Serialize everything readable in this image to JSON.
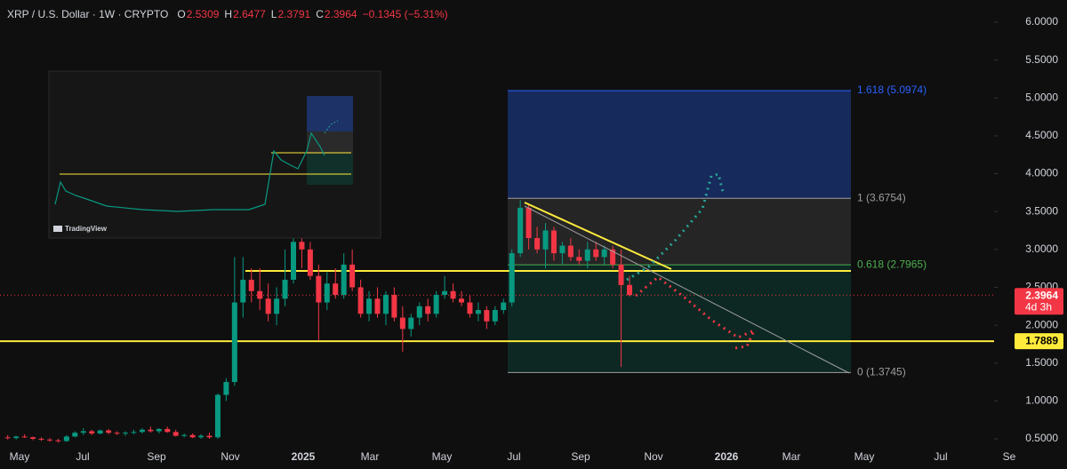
{
  "chart_data": {
    "type": "candlestick",
    "title": "XRP / U.S. Dollar · 1W · CRYPTO",
    "ohlc": [
      {
        "label": "O",
        "value": "2.5309"
      },
      {
        "label": "H",
        "value": "2.6477"
      },
      {
        "label": "L",
        "value": "2.3791"
      },
      {
        "label": "C",
        "value": "2.3964"
      }
    ],
    "change": "−0.1345 (−5.31%)",
    "up_color": "#089981",
    "down_color": "#f23645",
    "ylim": [
      0.47,
      6.15
    ],
    "yticks": [
      {
        "value": 6,
        "label": "6.0000"
      },
      {
        "value": 5.5,
        "label": "5.5000"
      },
      {
        "value": 5,
        "label": "5.0000"
      },
      {
        "value": 4.5,
        "label": "4.5000"
      },
      {
        "value": 4,
        "label": "4.0000"
      },
      {
        "value": 3.5,
        "label": "3.5000"
      },
      {
        "value": 3,
        "label": "3.0000"
      },
      {
        "value": 2.5,
        "label": "2.5000"
      },
      {
        "value": 2,
        "label": "2.0000"
      },
      {
        "value": 1.5,
        "label": "1.5000"
      },
      {
        "value": 1,
        "label": "1.0000"
      },
      {
        "value": 0.5,
        "label": "0.5000"
      }
    ],
    "categories": [
      "May",
      "Jul",
      "Sep",
      "Nov",
      "2025",
      "Mar",
      "May",
      "Jul",
      "Sep",
      "Nov",
      "2026",
      "Mar",
      "May",
      "Jul",
      "Se"
    ],
    "candles": [
      [
        0.52,
        0.55,
        0.49,
        0.51
      ],
      [
        0.51,
        0.54,
        0.49,
        0.53
      ],
      [
        0.53,
        0.56,
        0.51,
        0.52
      ],
      [
        0.52,
        0.53,
        0.48,
        0.5
      ],
      [
        0.5,
        0.52,
        0.47,
        0.49
      ],
      [
        0.49,
        0.51,
        0.46,
        0.48
      ],
      [
        0.48,
        0.5,
        0.45,
        0.47
      ],
      [
        0.47,
        0.55,
        0.46,
        0.53
      ],
      [
        0.53,
        0.6,
        0.52,
        0.58
      ],
      [
        0.58,
        0.64,
        0.55,
        0.6
      ],
      [
        0.6,
        0.62,
        0.55,
        0.57
      ],
      [
        0.57,
        0.62,
        0.56,
        0.61
      ],
      [
        0.61,
        0.63,
        0.56,
        0.58
      ],
      [
        0.58,
        0.6,
        0.55,
        0.57
      ],
      [
        0.57,
        0.6,
        0.54,
        0.58
      ],
      [
        0.58,
        0.62,
        0.56,
        0.59
      ],
      [
        0.59,
        0.64,
        0.57,
        0.62
      ],
      [
        0.62,
        0.66,
        0.58,
        0.6
      ],
      [
        0.6,
        0.64,
        0.57,
        0.63
      ],
      [
        0.63,
        0.66,
        0.58,
        0.59
      ],
      [
        0.59,
        0.62,
        0.53,
        0.54
      ],
      [
        0.54,
        0.57,
        0.52,
        0.55
      ],
      [
        0.55,
        0.57,
        0.51,
        0.52
      ],
      [
        0.52,
        0.56,
        0.5,
        0.54
      ],
      [
        0.54,
        0.58,
        0.5,
        0.52
      ],
      [
        0.52,
        1.1,
        0.5,
        1.08
      ],
      [
        1.08,
        1.3,
        1.0,
        1.25
      ],
      [
        1.25,
        2.9,
        1.2,
        2.3
      ],
      [
        2.3,
        2.9,
        2.1,
        2.6
      ],
      [
        2.6,
        2.75,
        2.3,
        2.45
      ],
      [
        2.45,
        2.75,
        2.2,
        2.35
      ],
      [
        2.35,
        2.55,
        2.05,
        2.15
      ],
      [
        2.15,
        2.5,
        2.0,
        2.35
      ],
      [
        2.35,
        3.0,
        2.25,
        2.6
      ],
      [
        2.6,
        3.4,
        2.55,
        3.1
      ],
      [
        3.1,
        3.35,
        2.75,
        3.0
      ],
      [
        3.0,
        3.1,
        2.6,
        2.65
      ],
      [
        2.65,
        2.8,
        1.8,
        2.3
      ],
      [
        2.3,
        2.7,
        2.2,
        2.55
      ],
      [
        2.55,
        2.75,
        2.35,
        2.4
      ],
      [
        2.4,
        2.95,
        2.35,
        2.8
      ],
      [
        2.8,
        3.0,
        2.45,
        2.5
      ],
      [
        2.5,
        2.6,
        2.1,
        2.15
      ],
      [
        2.15,
        2.45,
        2.05,
        2.35
      ],
      [
        2.35,
        2.5,
        2.1,
        2.15
      ],
      [
        2.15,
        2.45,
        2.0,
        2.4
      ],
      [
        2.4,
        2.5,
        2.05,
        2.1
      ],
      [
        2.1,
        2.25,
        1.65,
        1.95
      ],
      [
        1.95,
        2.15,
        1.85,
        2.1
      ],
      [
        2.1,
        2.3,
        2.0,
        2.25
      ],
      [
        2.25,
        2.35,
        2.05,
        2.15
      ],
      [
        2.15,
        2.45,
        2.1,
        2.4
      ],
      [
        2.4,
        2.65,
        2.35,
        2.45
      ],
      [
        2.45,
        2.55,
        2.3,
        2.35
      ],
      [
        2.35,
        2.45,
        2.25,
        2.3
      ],
      [
        2.3,
        2.4,
        2.1,
        2.15
      ],
      [
        2.15,
        2.3,
        2.05,
        2.2
      ],
      [
        2.2,
        2.25,
        1.95,
        2.05
      ],
      [
        2.05,
        2.25,
        2.0,
        2.2
      ],
      [
        2.2,
        2.35,
        2.15,
        2.3
      ],
      [
        2.3,
        3.0,
        2.25,
        2.95
      ],
      [
        2.95,
        3.65,
        2.9,
        3.55
      ],
      [
        3.55,
        3.6,
        3.0,
        3.15
      ],
      [
        3.15,
        3.3,
        2.95,
        3.0
      ],
      [
        3.0,
        3.35,
        2.75,
        3.25
      ],
      [
        3.25,
        3.3,
        2.85,
        2.95
      ],
      [
        2.95,
        3.1,
        2.8,
        3.05
      ],
      [
        3.05,
        3.15,
        2.85,
        2.9
      ],
      [
        2.9,
        3.0,
        2.8,
        2.85
      ],
      [
        2.85,
        3.1,
        2.75,
        3.0
      ],
      [
        3.0,
        3.1,
        2.85,
        2.9
      ],
      [
        2.9,
        3.05,
        2.8,
        3.0
      ],
      [
        3.0,
        3.05,
        2.75,
        2.8
      ],
      [
        2.8,
        3.0,
        1.45,
        2.53
      ],
      [
        2.5309,
        2.6477,
        2.3791,
        2.3964
      ]
    ],
    "fib": [
      {
        "value": 5.0974,
        "label": "1.618 (5.0974)",
        "color": "#2962ff"
      },
      {
        "value": 3.6754,
        "label": "1 (3.6754)",
        "color": "#9e9e9e"
      },
      {
        "value": 2.7965,
        "label": "0.618 (2.7965)",
        "color": "#4caf50"
      },
      {
        "value": 1.3745,
        "label": "0 (1.3745)",
        "color": "#9e9e9e"
      }
    ],
    "levels": [
      2.716,
      1.7889
    ],
    "price_tags": [
      {
        "value": 2.3964,
        "label": "2.3964",
        "sub": "4d 3h",
        "color": "#f23645"
      },
      {
        "value": 1.7889,
        "label": "1.7889",
        "color": "#ffeb3b"
      }
    ],
    "inset_brand": "TradingView"
  }
}
